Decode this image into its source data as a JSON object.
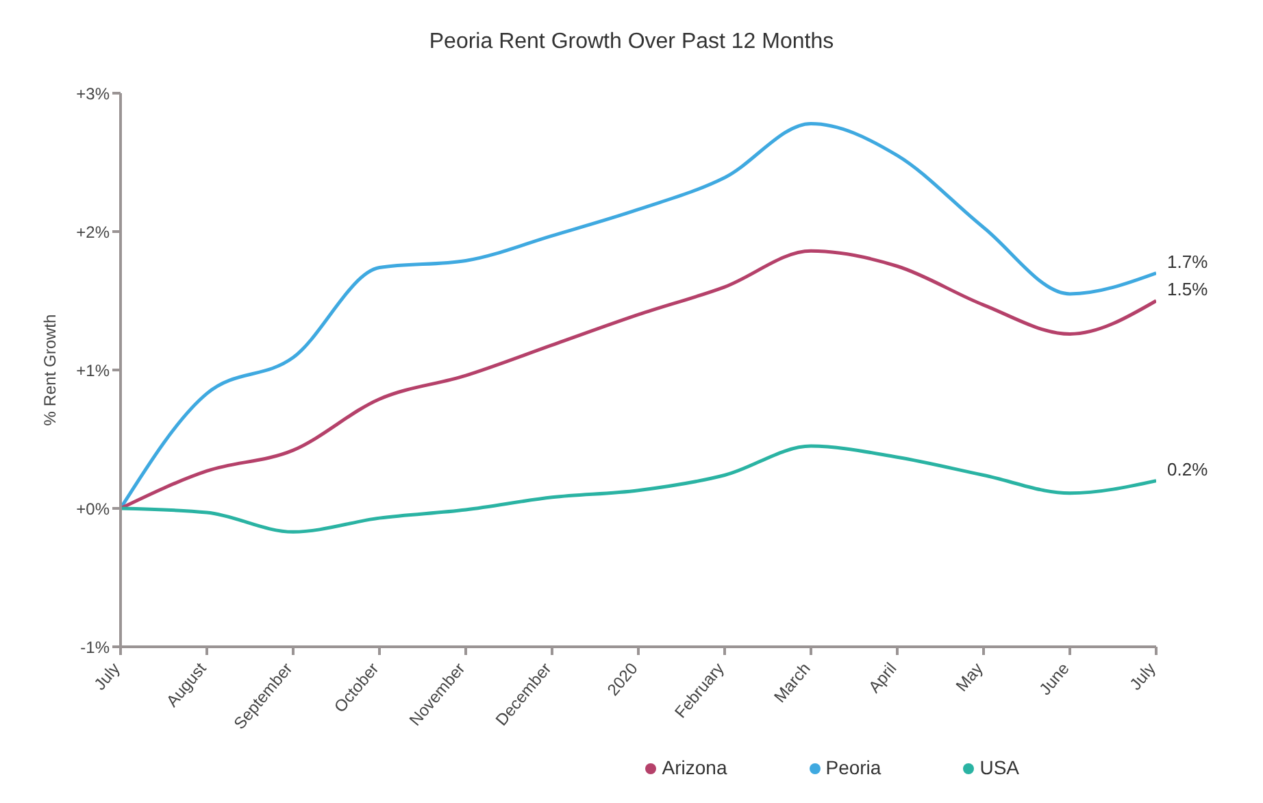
{
  "chart_data": {
    "type": "line",
    "title": "Peoria Rent Growth Over Past 12 Months",
    "ylabel": "% Rent Growth",
    "categories": [
      "July",
      "August",
      "September",
      "October",
      "November",
      "December",
      "2020",
      "February",
      "March",
      "April",
      "May",
      "June",
      "July"
    ],
    "series": [
      {
        "name": "Peoria",
        "color": "#3fa9e0",
        "values": [
          0,
          0.83,
          1.09,
          1.74,
          1.79,
          1.97,
          2.16,
          2.39,
          2.78,
          2.55,
          2.03,
          1.55,
          1.7
        ],
        "value_labels": [
          null,
          null,
          null,
          null,
          null,
          null,
          null,
          null,
          null,
          null,
          null,
          null,
          "1.7%"
        ]
      },
      {
        "name": "Arizona",
        "color": "#b5416a",
        "values": [
          0,
          0.27,
          0.42,
          0.79,
          0.96,
          1.18,
          1.4,
          1.6,
          1.86,
          1.75,
          1.47,
          1.26,
          1.5
        ],
        "value_labels": [
          null,
          null,
          null,
          null,
          null,
          null,
          null,
          null,
          null,
          null,
          null,
          null,
          "1.5%"
        ]
      },
      {
        "name": "USA",
        "color": "#2ab3a3",
        "values": [
          0,
          -0.03,
          -0.17,
          -0.07,
          -0.01,
          0.08,
          0.13,
          0.24,
          0.45,
          0.37,
          0.24,
          0.11,
          0.2
        ],
        "value_labels": [
          null,
          null,
          null,
          null,
          null,
          null,
          null,
          null,
          null,
          null,
          null,
          null,
          "0.2%"
        ]
      }
    ],
    "ylim": [
      -1,
      3
    ],
    "yticks": [
      {
        "value": -1,
        "label": "-1%"
      },
      {
        "value": 0,
        "label": "+0%"
      },
      {
        "value": 1,
        "label": "+1%"
      },
      {
        "value": 2,
        "label": "+2%"
      },
      {
        "value": 3,
        "label": "+3%"
      }
    ],
    "grid": false,
    "legend": "bottom right",
    "marker": "none",
    "line_style": "solid"
  }
}
